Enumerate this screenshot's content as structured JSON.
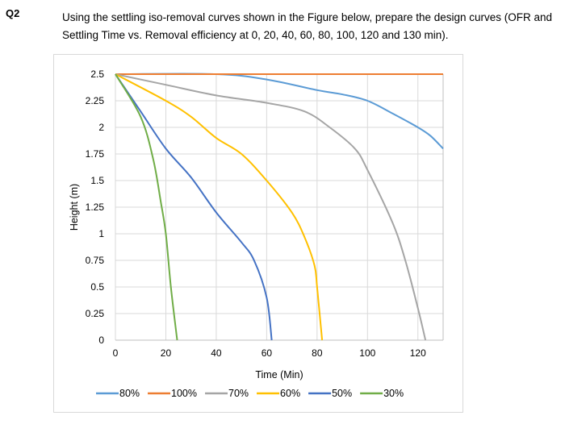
{
  "question": {
    "number": "Q2",
    "text": "Using the settling iso-removal curves shown in the Figure below, prepare the design curves (OFR and Settling Time vs. Removal efficiency at 0, 20, 40, 60, 80, 100, 120 and 130 min)."
  },
  "chart_data": {
    "type": "line",
    "title": "",
    "xlabel": "Time (Min)",
    "ylabel": "Height (m)",
    "xlim": [
      0,
      130
    ],
    "ylim": [
      0,
      2.5
    ],
    "xticks": [
      0,
      20,
      40,
      60,
      80,
      100,
      120
    ],
    "xtick_labels": [
      "0",
      "20",
      "40",
      "60",
      "80",
      "100",
      "120"
    ],
    "yticks": [
      0,
      0.25,
      0.5,
      0.75,
      1,
      1.25,
      1.5,
      1.75,
      2,
      2.25,
      2.5
    ],
    "ytick_labels": [
      "0",
      "0.25",
      "0.5",
      "0.75",
      "1",
      "1.25",
      "1.5",
      "1.75",
      "2",
      "2.25",
      "2.5"
    ],
    "grid": true,
    "legend_position": "bottom",
    "series": [
      {
        "name": "80%",
        "color": "#5b9bd5",
        "points": [
          [
            0,
            2.5
          ],
          [
            40,
            2.5
          ],
          [
            60,
            2.45
          ],
          [
            80,
            2.35
          ],
          [
            90,
            2.31
          ],
          [
            100,
            2.25
          ],
          [
            110,
            2.13
          ],
          [
            120,
            2.0
          ],
          [
            125,
            1.92
          ],
          [
            130,
            1.8
          ]
        ]
      },
      {
        "name": "100%",
        "color": "#ed7d31",
        "points": [
          [
            0,
            2.5
          ],
          [
            130,
            2.5
          ]
        ]
      },
      {
        "name": "70%",
        "color": "#a5a5a5",
        "points": [
          [
            0,
            2.5
          ],
          [
            20,
            2.4
          ],
          [
            40,
            2.3
          ],
          [
            60,
            2.23
          ],
          [
            75,
            2.15
          ],
          [
            85,
            2.0
          ],
          [
            95,
            1.8
          ],
          [
            100,
            1.6
          ],
          [
            110,
            1.1
          ],
          [
            115,
            0.75
          ],
          [
            120,
            0.3
          ],
          [
            123,
            0
          ]
        ]
      },
      {
        "name": "60%",
        "color": "#ffc000",
        "points": [
          [
            0,
            2.5
          ],
          [
            20,
            2.25
          ],
          [
            30,
            2.1
          ],
          [
            40,
            1.9
          ],
          [
            50,
            1.75
          ],
          [
            60,
            1.5
          ],
          [
            70,
            1.2
          ],
          [
            75,
            0.97
          ],
          [
            79,
            0.7
          ],
          [
            80,
            0.5
          ],
          [
            82,
            0
          ]
        ]
      },
      {
        "name": "50%",
        "color": "#4472c4",
        "points": [
          [
            0,
            2.5
          ],
          [
            10,
            2.15
          ],
          [
            20,
            1.8
          ],
          [
            30,
            1.53
          ],
          [
            40,
            1.2
          ],
          [
            50,
            0.92
          ],
          [
            55,
            0.75
          ],
          [
            60,
            0.4
          ],
          [
            62,
            0
          ]
        ]
      },
      {
        "name": "30%",
        "color": "#70ad47",
        "points": [
          [
            0,
            2.5
          ],
          [
            10,
            2.1
          ],
          [
            15,
            1.7
          ],
          [
            18,
            1.3
          ],
          [
            20,
            1.0
          ],
          [
            22,
            0.5
          ],
          [
            24.5,
            0
          ]
        ]
      }
    ]
  }
}
